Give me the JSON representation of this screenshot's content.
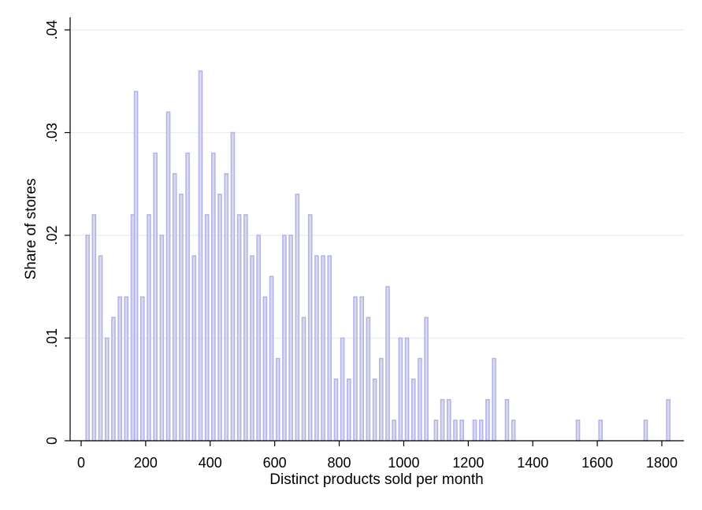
{
  "chart_data": {
    "type": "bar",
    "title": "",
    "xlabel": "Distinct products sold per month",
    "ylabel": "Share of stores",
    "xlim": [
      0,
      1830
    ],
    "ylim": [
      0,
      0.04
    ],
    "bin_width": 10,
    "x_ticks": [
      0,
      200,
      400,
      600,
      800,
      1000,
      1200,
      1400,
      1600,
      1800
    ],
    "x_tick_labels": [
      "0",
      "200",
      "400",
      "600",
      "800",
      "1000",
      "1200",
      "1400",
      "1600",
      "1800"
    ],
    "y_ticks": [
      0,
      0.01,
      0.02,
      0.03,
      0.04
    ],
    "y_tick_labels": [
      "0",
      ".01",
      ".02",
      ".03",
      ".04"
    ],
    "grid": "horizontal",
    "bar_fill": "#d9d9f2",
    "bar_stroke": "#b3b3e6",
    "bins": [
      {
        "x": 20,
        "y": 0.02
      },
      {
        "x": 40,
        "y": 0.022
      },
      {
        "x": 60,
        "y": 0.018
      },
      {
        "x": 80,
        "y": 0.01
      },
      {
        "x": 100,
        "y": 0.012
      },
      {
        "x": 120,
        "y": 0.014
      },
      {
        "x": 140,
        "y": 0.014
      },
      {
        "x": 160,
        "y": 0.022
      },
      {
        "x": 170,
        "y": 0.034
      },
      {
        "x": 190,
        "y": 0.014
      },
      {
        "x": 210,
        "y": 0.022
      },
      {
        "x": 230,
        "y": 0.028
      },
      {
        "x": 250,
        "y": 0.02
      },
      {
        "x": 270,
        "y": 0.032
      },
      {
        "x": 290,
        "y": 0.026
      },
      {
        "x": 310,
        "y": 0.024
      },
      {
        "x": 330,
        "y": 0.028
      },
      {
        "x": 350,
        "y": 0.018
      },
      {
        "x": 370,
        "y": 0.036
      },
      {
        "x": 390,
        "y": 0.022
      },
      {
        "x": 410,
        "y": 0.028
      },
      {
        "x": 430,
        "y": 0.024
      },
      {
        "x": 450,
        "y": 0.026
      },
      {
        "x": 470,
        "y": 0.03
      },
      {
        "x": 490,
        "y": 0.022
      },
      {
        "x": 510,
        "y": 0.022
      },
      {
        "x": 530,
        "y": 0.018
      },
      {
        "x": 550,
        "y": 0.02
      },
      {
        "x": 570,
        "y": 0.014
      },
      {
        "x": 590,
        "y": 0.016
      },
      {
        "x": 610,
        "y": 0.008
      },
      {
        "x": 630,
        "y": 0.02
      },
      {
        "x": 650,
        "y": 0.02
      },
      {
        "x": 670,
        "y": 0.024
      },
      {
        "x": 690,
        "y": 0.012
      },
      {
        "x": 710,
        "y": 0.022
      },
      {
        "x": 730,
        "y": 0.018
      },
      {
        "x": 750,
        "y": 0.018
      },
      {
        "x": 770,
        "y": 0.018
      },
      {
        "x": 790,
        "y": 0.006
      },
      {
        "x": 810,
        "y": 0.01
      },
      {
        "x": 830,
        "y": 0.006
      },
      {
        "x": 850,
        "y": 0.014
      },
      {
        "x": 870,
        "y": 0.014
      },
      {
        "x": 890,
        "y": 0.012
      },
      {
        "x": 910,
        "y": 0.006
      },
      {
        "x": 930,
        "y": 0.008
      },
      {
        "x": 950,
        "y": 0.015
      },
      {
        "x": 970,
        "y": 0.002
      },
      {
        "x": 990,
        "y": 0.01
      },
      {
        "x": 1010,
        "y": 0.01
      },
      {
        "x": 1030,
        "y": 0.006
      },
      {
        "x": 1050,
        "y": 0.008
      },
      {
        "x": 1070,
        "y": 0.012
      },
      {
        "x": 1100,
        "y": 0.002
      },
      {
        "x": 1120,
        "y": 0.004
      },
      {
        "x": 1140,
        "y": 0.004
      },
      {
        "x": 1160,
        "y": 0.002
      },
      {
        "x": 1180,
        "y": 0.002
      },
      {
        "x": 1220,
        "y": 0.002
      },
      {
        "x": 1240,
        "y": 0.002
      },
      {
        "x": 1260,
        "y": 0.004
      },
      {
        "x": 1280,
        "y": 0.008
      },
      {
        "x": 1320,
        "y": 0.004
      },
      {
        "x": 1340,
        "y": 0.002
      },
      {
        "x": 1540,
        "y": 0.002
      },
      {
        "x": 1610,
        "y": 0.002
      },
      {
        "x": 1750,
        "y": 0.002
      },
      {
        "x": 1820,
        "y": 0.004
      }
    ]
  }
}
